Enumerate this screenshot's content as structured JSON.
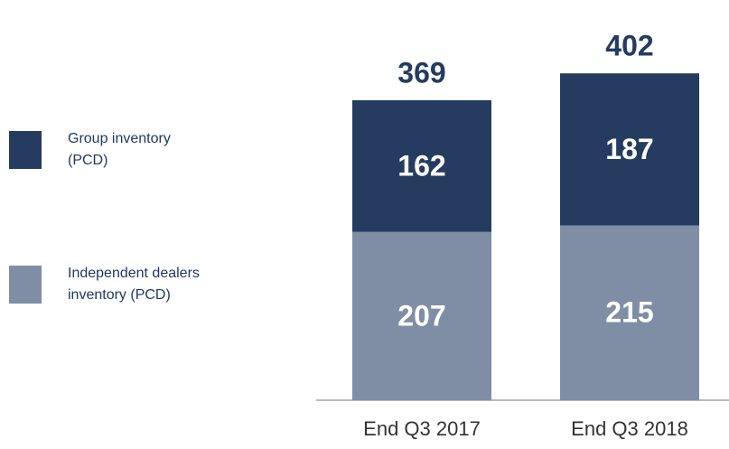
{
  "chart_data": {
    "type": "stacked_bar",
    "categories": [
      "End Q3 2017",
      "End Q3 2018"
    ],
    "series": [
      {
        "name": "Independent dealers inventory (PCD)",
        "color": "#7f8ea5",
        "values": [
          207,
          215
        ]
      },
      {
        "name": "Group inventory (PCD)",
        "color": "#253c60",
        "values": [
          162,
          187
        ]
      }
    ],
    "totals": [
      369,
      402
    ],
    "legend": "left"
  }
}
